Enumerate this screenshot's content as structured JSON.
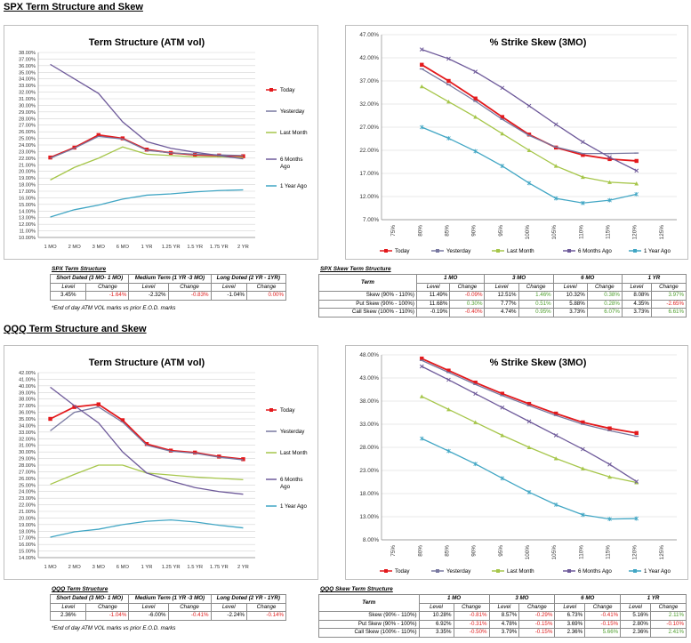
{
  "sections": {
    "spx_title": "SPX Term Structure and Skew",
    "qqq_title": "QQQ Term Structure and Skew"
  },
  "colors": {
    "today": "#e3191c",
    "yesterday": "#7878a0",
    "last_month": "#a6c64a",
    "six_months": "#6e5a9a",
    "one_year": "#41a6c4"
  },
  "chart_data": [
    {
      "id": "spx_term",
      "type": "line",
      "title": "Term Structure (ATM vol)",
      "categories": [
        "1 MO",
        "2 MO",
        "3 MO",
        "6 MO",
        "1 YR",
        "1.25 YR",
        "1.5 YR",
        "1.75 YR",
        "2 YR"
      ],
      "ylim": [
        10,
        38
      ],
      "ystep": 1,
      "yformat": "pct2",
      "legend": "right",
      "grid": true,
      "series": [
        {
          "name": "Today",
          "color": "today",
          "marker": true,
          "values": [
            22.1,
            23.6,
            25.5,
            25.0,
            23.3,
            22.8,
            22.5,
            22.4,
            22.3
          ]
        },
        {
          "name": "Yesterday",
          "color": "yesterday",
          "marker": false,
          "values": [
            22.0,
            23.5,
            25.3,
            24.9,
            23.2,
            22.8,
            22.6,
            22.5,
            22.4
          ]
        },
        {
          "name": "Last Month",
          "color": "last_month",
          "marker": false,
          "values": [
            18.7,
            20.6,
            22.0,
            23.7,
            22.6,
            22.4,
            22.2,
            22.2,
            22.1
          ]
        },
        {
          "name": "6 Months Ago",
          "color": "six_months",
          "marker": false,
          "values": [
            36.2,
            34.0,
            31.8,
            27.5,
            24.5,
            23.5,
            22.9,
            22.4,
            21.9
          ]
        },
        {
          "name": "1 Year Ago",
          "color": "one_year",
          "marker": false,
          "values": [
            13.1,
            14.2,
            14.9,
            15.8,
            16.4,
            16.6,
            16.9,
            17.1,
            17.2
          ]
        }
      ]
    },
    {
      "id": "spx_skew",
      "type": "line",
      "title": "% Strike Skew (3MO)",
      "categories": [
        "75%",
        "80%",
        "85%",
        "90%",
        "95%",
        "100%",
        "105%",
        "110%",
        "115%",
        "120%",
        "125%"
      ],
      "ylim": [
        7,
        47
      ],
      "ystep": 5,
      "yformat": "pct2",
      "legend": "bottom",
      "grid": true,
      "series": [
        {
          "name": "Today",
          "color": "today",
          "marker": true,
          "values": [
            null,
            40.5,
            37.0,
            33.2,
            29.2,
            25.4,
            22.6,
            21.0,
            20.1,
            19.7,
            null
          ]
        },
        {
          "name": "Yesterday",
          "color": "yesterday",
          "marker": true,
          "values": [
            null,
            39.6,
            36.2,
            32.6,
            28.7,
            25.2,
            22.7,
            21.3,
            21.3,
            21.4,
            null
          ]
        },
        {
          "name": "Last Month",
          "color": "last_month",
          "marker": true,
          "values": [
            null,
            35.8,
            32.5,
            29.2,
            25.6,
            22.0,
            18.6,
            16.2,
            15.1,
            14.8,
            null
          ]
        },
        {
          "name": "6 Months Ago",
          "color": "six_months",
          "marker": true,
          "values": [
            null,
            43.8,
            41.8,
            39.0,
            35.5,
            31.6,
            27.6,
            23.8,
            20.5,
            17.6,
            null
          ]
        },
        {
          "name": "1 Year Ago",
          "color": "one_year",
          "marker": true,
          "values": [
            null,
            27.0,
            24.6,
            21.8,
            18.6,
            14.9,
            11.6,
            10.6,
            11.2,
            12.5,
            null
          ]
        }
      ]
    },
    {
      "id": "qqq_term",
      "type": "line",
      "title": "Term Structure (ATM vol)",
      "categories": [
        "1 MO",
        "2 MO",
        "3 MO",
        "6 MO",
        "1 YR",
        "1.25 YR",
        "1.5 YR",
        "1.75 YR",
        "2 YR"
      ],
      "ylim": [
        14,
        42
      ],
      "ystep": 1,
      "yformat": "pct2",
      "legend": "right",
      "grid": true,
      "series": [
        {
          "name": "Today",
          "color": "today",
          "marker": true,
          "values": [
            35.0,
            36.8,
            37.2,
            34.8,
            31.2,
            30.2,
            29.9,
            29.3,
            28.9
          ]
        },
        {
          "name": "Yesterday",
          "color": "yesterday",
          "marker": false,
          "values": [
            33.2,
            36.0,
            36.8,
            34.5,
            31.0,
            30.1,
            29.8,
            29.2,
            28.8
          ]
        },
        {
          "name": "Last Month",
          "color": "last_month",
          "marker": false,
          "values": [
            25.1,
            26.6,
            28.0,
            28.0,
            26.8,
            26.5,
            26.2,
            26.0,
            25.8
          ]
        },
        {
          "name": "6 Months Ago",
          "color": "six_months",
          "marker": false,
          "values": [
            39.8,
            37.0,
            34.4,
            30.0,
            26.8,
            25.6,
            24.6,
            24.0,
            23.6
          ]
        },
        {
          "name": "1 Year Ago",
          "color": "one_year",
          "marker": false,
          "values": [
            17.1,
            17.9,
            18.3,
            19.0,
            19.5,
            19.7,
            19.4,
            18.9,
            18.5
          ]
        }
      ]
    },
    {
      "id": "qqq_skew",
      "type": "line",
      "title": "% Strike Skew (3MO)",
      "categories": [
        "75%",
        "80%",
        "85%",
        "90%",
        "95%",
        "100%",
        "105%",
        "110%",
        "115%",
        "120%",
        "125%"
      ],
      "ylim": [
        8,
        48
      ],
      "ystep": 5,
      "yformat": "pct2",
      "legend": "bottom",
      "grid": true,
      "series": [
        {
          "name": "Today",
          "color": "today",
          "marker": true,
          "values": [
            null,
            47.2,
            44.6,
            42.0,
            39.6,
            37.4,
            35.3,
            33.4,
            32.1,
            31.1,
            null
          ]
        },
        {
          "name": "Yesterday",
          "color": "yesterday",
          "marker": true,
          "values": [
            null,
            46.8,
            44.2,
            41.6,
            39.2,
            37.0,
            34.9,
            33.0,
            31.6,
            30.4,
            null
          ]
        },
        {
          "name": "Last Month",
          "color": "last_month",
          "marker": true,
          "values": [
            null,
            39.0,
            36.2,
            33.4,
            30.6,
            28.0,
            25.6,
            23.4,
            21.6,
            20.4,
            null
          ]
        },
        {
          "name": "6 Months Ago",
          "color": "six_months",
          "marker": true,
          "values": [
            null,
            45.5,
            42.6,
            39.6,
            36.6,
            33.6,
            30.6,
            27.6,
            24.3,
            20.6,
            null
          ]
        },
        {
          "name": "1 Year Ago",
          "color": "one_year",
          "marker": true,
          "values": [
            null,
            29.9,
            27.2,
            24.4,
            21.3,
            18.3,
            15.6,
            13.4,
            12.5,
            12.6,
            null
          ]
        }
      ]
    }
  ],
  "tables": {
    "spx_term": {
      "caption": "SPX Term Structure",
      "headers": [
        "Short Dated (3 MO- 1 MO)",
        "Medium Term (1 YR -3 MO)",
        "Long Doted (2 YR - 1YR)"
      ],
      "sub": [
        "Level",
        "Change"
      ],
      "values": [
        [
          "3.45%",
          "-1.64%"
        ],
        [
          "-2.32%",
          "-0.83%"
        ],
        [
          "-1.04%",
          "0.00%"
        ]
      ],
      "footnote": "*End of day ATM VOL marks vs prior E.O.D. marks"
    },
    "spx_skew": {
      "caption": "SPX Skew Term Structure",
      "term_label": "Term",
      "headers": [
        "1 MO",
        "3 MO",
        "6 MO",
        "1 YR"
      ],
      "sub": [
        "Level",
        "Change"
      ],
      "rows": [
        {
          "label": "Skew (90% - 110%)",
          "cells": [
            [
              "11.49%",
              "-0.09%"
            ],
            [
              "12.51%",
              "1.46%"
            ],
            [
              "10.32%",
              "0.38%"
            ],
            [
              "8.08%",
              "3.97%"
            ]
          ]
        },
        {
          "label": "Put Skew (90% - 100%)",
          "cells": [
            [
              "11.68%",
              "0.30%"
            ],
            [
              "7.77%",
              "0.51%"
            ],
            [
              "5.88%",
              "0.28%"
            ],
            [
              "4.35%",
              "-2.65%"
            ]
          ]
        },
        {
          "label": "Call Skew (100% - 110%)",
          "cells": [
            [
              "-0.19%",
              "-0.40%"
            ],
            [
              "4.74%",
              "0.95%"
            ],
            [
              "3.73%",
              "6.07%"
            ],
            [
              "3.73%",
              "6.61%"
            ]
          ]
        }
      ]
    },
    "qqq_term": {
      "caption": "QQQ Term Structure",
      "headers": [
        "Short Dated (3 MO- 1 MO)",
        "Medium Term (1 YR -3 MO)",
        "Long Doted (2 YR - 1YR)"
      ],
      "sub": [
        "Level",
        "Change"
      ],
      "values": [
        [
          "2.36%",
          "-1.04%"
        ],
        [
          "-6.00%",
          "-0.41%"
        ],
        [
          "-2.24%",
          "-0.14%"
        ]
      ],
      "footnote": "*End of day ATM VOL marks vs prior E.O.D. marks"
    },
    "qqq_skew": {
      "caption": "QQQ Skew Term Structure",
      "term_label": "Term",
      "headers": [
        "1 MO",
        "3 MO",
        "6 MO",
        "1 YR"
      ],
      "sub": [
        "Level",
        "Change"
      ],
      "rows": [
        {
          "label": "Skew (90% - 110%)",
          "cells": [
            [
              "10.28%",
              "-0.81%"
            ],
            [
              "8.57%",
              "-0.29%"
            ],
            [
              "6.73%",
              "-0.41%"
            ],
            [
              "5.16%",
              "2.11%"
            ]
          ]
        },
        {
          "label": "Put Skew (90% - 100%)",
          "cells": [
            [
              "6.92%",
              "-0.31%"
            ],
            [
              "4.78%",
              "-0.15%"
            ],
            [
              "3.69%",
              "-0.15%"
            ],
            [
              "2.80%",
              "-0.10%"
            ]
          ]
        },
        {
          "label": "Call Skew (100% - 110%)",
          "cells": [
            [
              "3.35%",
              "-0.50%"
            ],
            [
              "3.79%",
              "-0.15%"
            ],
            [
              "2.36%",
              "5.66%"
            ],
            [
              "2.36%",
              "2.41%"
            ]
          ]
        }
      ]
    }
  }
}
